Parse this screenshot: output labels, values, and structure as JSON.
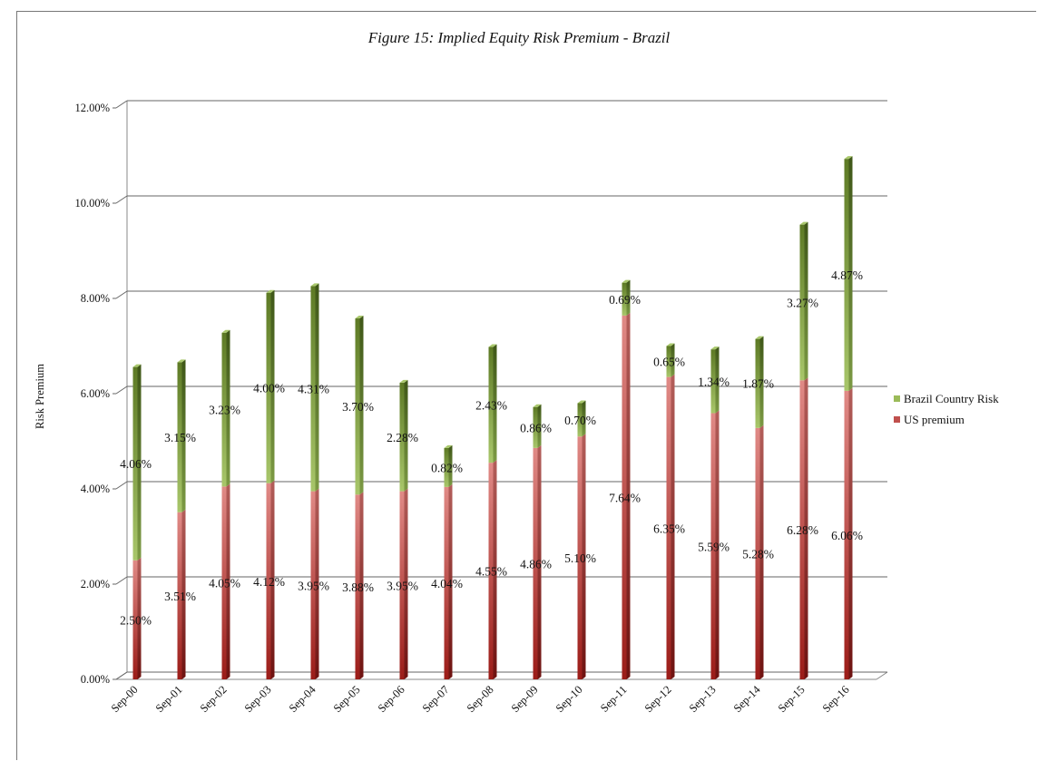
{
  "chart_data": {
    "type": "bar",
    "stacked": true,
    "title": "Figure 15: Implied Equity Risk Premium - Brazil",
    "xlabel": "",
    "ylabel": "Risk Premium",
    "ylim": [
      0,
      12
    ],
    "yticks": [
      "0.00%",
      "2.00%",
      "4.00%",
      "6.00%",
      "8.00%",
      "10.00%",
      "12.00%"
    ],
    "categories": [
      "Sep-00",
      "Sep-01",
      "Sep-02",
      "Sep-03",
      "Sep-04",
      "Sep-05",
      "Sep-06",
      "Sep-07",
      "Sep-08",
      "Sep-09",
      "Sep-10",
      "Sep-11",
      "Sep-12",
      "Sep-13",
      "Sep-14",
      "Sep-15",
      "Sep-16"
    ],
    "series": [
      {
        "name": "US premium",
        "color": "#c0504d",
        "values": [
          2.5,
          3.51,
          4.05,
          4.12,
          3.95,
          3.88,
          3.95,
          4.04,
          4.55,
          4.86,
          5.1,
          7.64,
          6.35,
          5.59,
          5.28,
          6.28,
          6.06
        ],
        "labels": [
          "2.50%",
          "3.51%",
          "4.05%",
          "4.12%",
          "3.95%",
          "3.88%",
          "3.95%",
          "4.04%",
          "4.55%",
          "4.86%",
          "5.10%",
          "7.64%",
          "6.35%",
          "5.59%",
          "5.28%",
          "6.28%",
          "6.06%"
        ]
      },
      {
        "name": "Brazil Country Risk",
        "color": "#77933c",
        "values": [
          4.06,
          3.15,
          3.23,
          4.0,
          4.31,
          3.7,
          2.28,
          0.82,
          2.43,
          0.86,
          0.7,
          0.69,
          0.65,
          1.34,
          1.87,
          3.27,
          4.87
        ],
        "labels": [
          "4.06%",
          "3.15%",
          "3.23%",
          "4.00%",
          "4.31%",
          "3.70%",
          "2.28%",
          "0.82%",
          "2.43%",
          "0.86%",
          "0.70%",
          "0.69%",
          "0.65%",
          "1.34%",
          "1.87%",
          "3.27%",
          "4.87%"
        ]
      }
    ],
    "legend": [
      "Brazil Country Risk",
      "US premium"
    ],
    "legend_position": "right",
    "grid": true,
    "style": "3d-columns"
  }
}
